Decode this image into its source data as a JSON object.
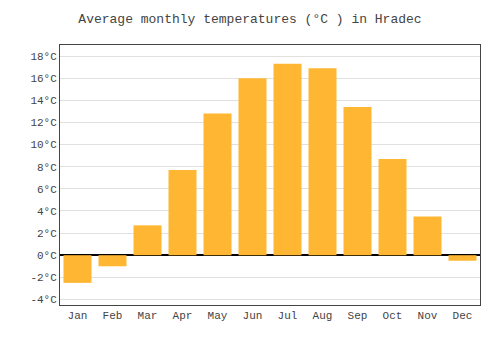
{
  "chart_data": {
    "type": "bar",
    "title": "Average monthly temperatures (°C ) in Hradec",
    "categories": [
      "Jan",
      "Feb",
      "Mar",
      "Apr",
      "May",
      "Jun",
      "Jul",
      "Aug",
      "Sep",
      "Oct",
      "Nov",
      "Dec"
    ],
    "values": [
      -2.5,
      -1.0,
      2.7,
      7.7,
      12.8,
      16.0,
      17.3,
      16.9,
      13.4,
      8.7,
      3.5,
      -0.5
    ],
    "color": "#FFB733",
    "ylim": [
      -4.5,
      19
    ],
    "yticks": [
      {
        "value": -4,
        "label": "-4°C"
      },
      {
        "value": -2,
        "label": "-2°C"
      },
      {
        "value": 0,
        "label": "0°C"
      },
      {
        "value": 2,
        "label": "2°C"
      },
      {
        "value": 4,
        "label": "4°C"
      },
      {
        "value": 6,
        "label": "6°C"
      },
      {
        "value": 8,
        "label": "8°C"
      },
      {
        "value": 10,
        "label": "10°C"
      },
      {
        "value": 12,
        "label": "12°C"
      },
      {
        "value": 14,
        "label": "14°C"
      },
      {
        "value": 16,
        "label": "16°C"
      },
      {
        "value": 18,
        "label": "18°C"
      }
    ],
    "grid": true
  }
}
